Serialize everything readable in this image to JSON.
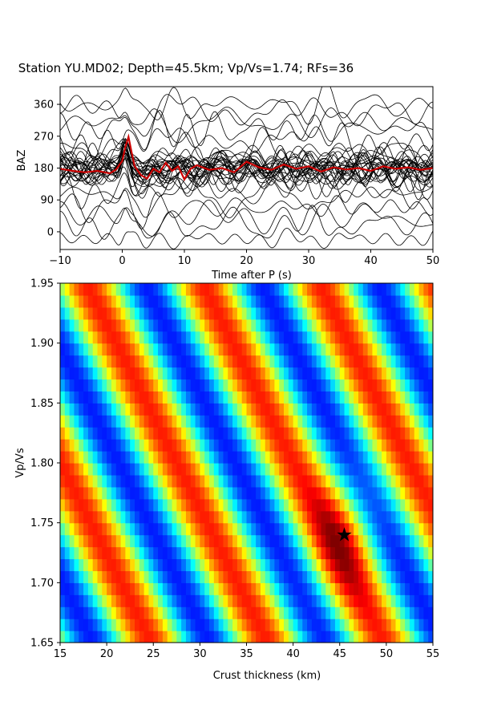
{
  "title": "Station YU.MD02; Depth=45.5km; Vp/Vs=1.74; RFs=36",
  "chart_data": [
    {
      "type": "line",
      "name": "receiver-function-traces",
      "xlabel": "Time after P (s)",
      "ylabel": "BAZ",
      "xlim": [
        -10,
        50
      ],
      "ylim": [
        -50,
        410
      ],
      "xticks": [
        -10,
        0,
        10,
        20,
        30,
        40,
        50
      ],
      "yticks": [
        0,
        90,
        180,
        270,
        360
      ],
      "trace_count": 36,
      "trace_color": "#000000",
      "stack_color": "#cc0000",
      "stack": {
        "x": [
          -10,
          -8,
          -6,
          -4,
          -2,
          -1,
          0,
          0.5,
          1,
          1.5,
          2,
          3,
          4,
          5,
          6,
          7,
          8,
          9,
          10,
          11,
          12,
          14,
          16,
          18,
          20,
          22,
          24,
          26,
          28,
          30,
          32,
          34,
          36,
          38,
          40,
          42,
          44,
          46,
          48,
          50
        ],
        "y": [
          178,
          172,
          168,
          172,
          165,
          176,
          200,
          240,
          268,
          225,
          185,
          160,
          150,
          178,
          168,
          195,
          172,
          185,
          148,
          178,
          188,
          175,
          180,
          168,
          198,
          182,
          175,
          190,
          178,
          185,
          170,
          182,
          176,
          180,
          172,
          185,
          178,
          182,
          175,
          180
        ]
      }
    },
    {
      "type": "heatmap",
      "name": "h-kappa-stack",
      "xlabel": "Crust thickness (km)",
      "ylabel": "Vp/Vs",
      "xlim": [
        15,
        55
      ],
      "ylim": [
        1.65,
        1.95
      ],
      "xticks": [
        15,
        20,
        25,
        30,
        35,
        40,
        45,
        50,
        55
      ],
      "yticks": [
        1.65,
        1.7,
        1.75,
        1.8,
        1.85,
        1.9,
        1.95
      ],
      "colormap": "jet",
      "best_fit": {
        "H": 45.5,
        "k": 1.74
      }
    }
  ]
}
